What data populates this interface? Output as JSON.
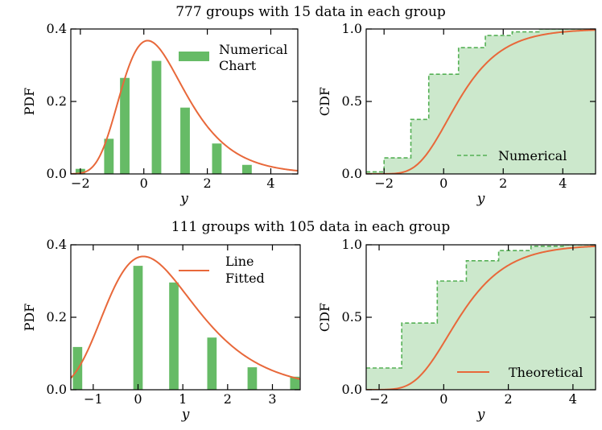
{
  "chart_data": [
    {
      "row_title": "777 groups with 15 data in each group",
      "type": "bar",
      "panel": "top-left",
      "xlabel": "y",
      "ylabel": "PDF",
      "xlim": [
        -2.3,
        4.85
      ],
      "ylim": [
        0,
        0.4
      ],
      "xticks": [
        "-2",
        "0",
        "2",
        "4"
      ],
      "yticks": [
        "0.0",
        "0.2",
        "0.4"
      ],
      "legend": {
        "labels": [
          "Numerical",
          "Chart"
        ],
        "placement": "top-right"
      },
      "bar_width": 0.3,
      "bars": {
        "x": [
          -2.0,
          -1.1,
          -0.6,
          0.4,
          1.3,
          2.3,
          3.25
        ],
        "values": [
          0.014,
          0.097,
          0.265,
          0.312,
          0.183,
          0.084,
          0.025
        ]
      },
      "curve": {
        "type": "gumbel",
        "mu": 0.12,
        "beta": 1.0
      }
    },
    {
      "type": "line",
      "panel": "top-right",
      "xlabel": "y",
      "ylabel": "CDF",
      "xlim": [
        -2.6,
        5.1
      ],
      "ylim": [
        0,
        1.0
      ],
      "xticks": [
        "-2",
        "0",
        "2",
        "4"
      ],
      "yticks": [
        "0.0",
        "0.5",
        "1.0"
      ],
      "legend": {
        "labels": [
          "Numerical"
        ],
        "placement": "lower-right"
      },
      "step": {
        "x": [
          -2.6,
          -2.0,
          -1.1,
          -0.5,
          0.5,
          1.4,
          2.3,
          3.2,
          5.1
        ],
        "values": [
          0.0,
          0.014,
          0.111,
          0.376,
          0.688,
          0.871,
          0.955,
          0.98,
          1.0
        ]
      },
      "curve": {
        "type": "gumbel-cdf",
        "mu": 0.12,
        "beta": 1.0
      }
    },
    {
      "row_title": "111 groups with 105 data in each group",
      "type": "bar",
      "panel": "bottom-left",
      "xlabel": "y",
      "ylabel": "PDF",
      "xlim": [
        -1.5,
        3.62
      ],
      "ylim": [
        0,
        0.4
      ],
      "xticks": [
        "-1",
        "0",
        "1",
        "2",
        "3"
      ],
      "yticks": [
        "0.0",
        "0.2",
        "0.4"
      ],
      "legend": {
        "labels": [
          "Line",
          "Fitted"
        ],
        "placement": "top-right"
      },
      "bar_width": 0.21,
      "bars": {
        "x": [
          -1.35,
          0.0,
          0.8,
          1.65,
          2.55,
          3.5
        ],
        "values": [
          0.118,
          0.342,
          0.296,
          0.144,
          0.062,
          0.036
        ]
      },
      "curve": {
        "type": "gumbel",
        "mu": 0.12,
        "beta": 1.0
      }
    },
    {
      "type": "line",
      "panel": "bottom-right",
      "xlabel": "y",
      "ylabel": "CDF",
      "xlim": [
        -2.4,
        4.7
      ],
      "ylim": [
        0,
        1.0
      ],
      "xticks": [
        "-2",
        "0",
        "2",
        "4"
      ],
      "yticks": [
        "0.0",
        "0.5",
        "1.0"
      ],
      "legend": {
        "labels": [
          "Theoretical"
        ],
        "placement": "lower-right"
      },
      "step": {
        "x": [
          -2.4,
          -1.3,
          -0.2,
          0.7,
          1.7,
          2.7,
          3.7,
          4.7
        ],
        "values": [
          0.0,
          0.15,
          0.46,
          0.75,
          0.89,
          0.96,
          0.99,
          1.0
        ]
      },
      "curve": {
        "type": "gumbel-cdf",
        "mu": 0.12,
        "beta": 1.0
      }
    }
  ],
  "colors": {
    "bar": "#66bb66",
    "fill": "#cce8cc",
    "step": "#55b055",
    "curve": "#e8683a",
    "axis": "#000000"
  }
}
